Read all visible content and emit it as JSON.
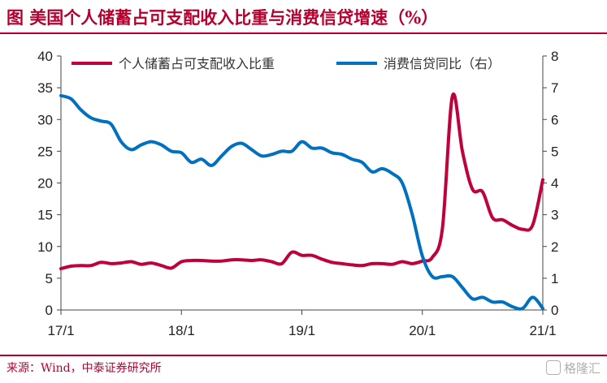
{
  "header": {
    "title": "图  美国个人储蓄占可支配收入比重与消费信贷增速（%）"
  },
  "footer": {
    "source": "来源：Wind，中泰证券研究所",
    "watermark": "格隆汇"
  },
  "colors": {
    "brand": "#b5002f",
    "series_savings": "#c0003a",
    "series_credit": "#0070c0"
  },
  "chart_data": {
    "type": "line",
    "title": "美国个人储蓄占可支配收入比重与消费信贷增速（%）",
    "x_tick_labels": [
      "17/1",
      "18/1",
      "19/1",
      "20/1",
      "21/1"
    ],
    "x_range": [
      "2017-01",
      "2021-01"
    ],
    "y_left": {
      "ticks": [
        "0",
        "5",
        "10",
        "15",
        "20",
        "25",
        "30",
        "35",
        "40"
      ],
      "ylim": [
        0,
        40
      ]
    },
    "y_right": {
      "ticks": [
        "0",
        "1",
        "2",
        "3",
        "4",
        "5",
        "6",
        "7",
        "8"
      ],
      "ylim": [
        0,
        8
      ]
    },
    "grid": false,
    "legend_placement": "top",
    "series": [
      {
        "name": "个人储蓄占可支配收入比重",
        "axis": "left",
        "x": [
          "2017-01",
          "2017-02",
          "2017-03",
          "2017-04",
          "2017-05",
          "2017-06",
          "2017-07",
          "2017-08",
          "2017-09",
          "2017-10",
          "2017-11",
          "2017-12",
          "2018-01",
          "2018-02",
          "2018-03",
          "2018-04",
          "2018-05",
          "2018-06",
          "2018-07",
          "2018-08",
          "2018-09",
          "2018-10",
          "2018-11",
          "2018-12",
          "2019-01",
          "2019-02",
          "2019-03",
          "2019-04",
          "2019-05",
          "2019-06",
          "2019-07",
          "2019-08",
          "2019-09",
          "2019-10",
          "2019-11",
          "2019-12",
          "2020-01",
          "2020-02",
          "2020-03",
          "2020-04",
          "2020-05",
          "2020-06",
          "2020-07",
          "2020-08",
          "2020-09",
          "2020-10",
          "2020-11",
          "2020-12",
          "2021-01"
        ],
        "values": [
          6.5,
          6.9,
          7.0,
          7.0,
          7.5,
          7.3,
          7.4,
          7.6,
          7.2,
          7.4,
          7.0,
          6.6,
          7.6,
          7.8,
          7.8,
          7.7,
          7.7,
          7.9,
          7.9,
          7.8,
          7.9,
          7.6,
          7.3,
          9.1,
          8.6,
          8.6,
          8.0,
          7.5,
          7.3,
          7.1,
          7.0,
          7.3,
          7.3,
          7.2,
          7.6,
          7.3,
          7.7,
          8.3,
          12.9,
          33.7,
          24.9,
          19.0,
          18.6,
          14.5,
          14.2,
          13.3,
          12.7,
          13.4,
          20.5
        ]
      },
      {
        "name": "消费信贷同比（右）",
        "axis": "right",
        "x": [
          "2017-01",
          "2017-02",
          "2017-03",
          "2017-04",
          "2017-05",
          "2017-06",
          "2017-07",
          "2017-08",
          "2017-09",
          "2017-10",
          "2017-11",
          "2017-12",
          "2018-01",
          "2018-02",
          "2018-03",
          "2018-04",
          "2018-05",
          "2018-06",
          "2018-07",
          "2018-08",
          "2018-09",
          "2018-10",
          "2018-11",
          "2018-12",
          "2019-01",
          "2019-02",
          "2019-03",
          "2019-04",
          "2019-05",
          "2019-06",
          "2019-07",
          "2019-08",
          "2019-09",
          "2019-10",
          "2019-11",
          "2019-12",
          "2020-01",
          "2020-02",
          "2020-03",
          "2020-04",
          "2020-05",
          "2020-06",
          "2020-07",
          "2020-08",
          "2020-09",
          "2020-10",
          "2020-11",
          "2020-12",
          "2021-01"
        ],
        "values": [
          6.75,
          6.65,
          6.3,
          6.05,
          5.95,
          5.85,
          5.3,
          5.05,
          5.2,
          5.3,
          5.2,
          5.0,
          4.95,
          4.65,
          4.75,
          4.55,
          4.85,
          5.15,
          5.25,
          5.05,
          4.85,
          4.9,
          5.0,
          5.0,
          5.3,
          5.1,
          5.1,
          4.95,
          4.9,
          4.75,
          4.65,
          4.35,
          4.45,
          4.3,
          4.0,
          3.0,
          1.7,
          1.05,
          1.05,
          1.05,
          0.7,
          0.35,
          0.4,
          0.25,
          0.25,
          0.1,
          0.05,
          0.4,
          0.05
        ]
      }
    ]
  }
}
